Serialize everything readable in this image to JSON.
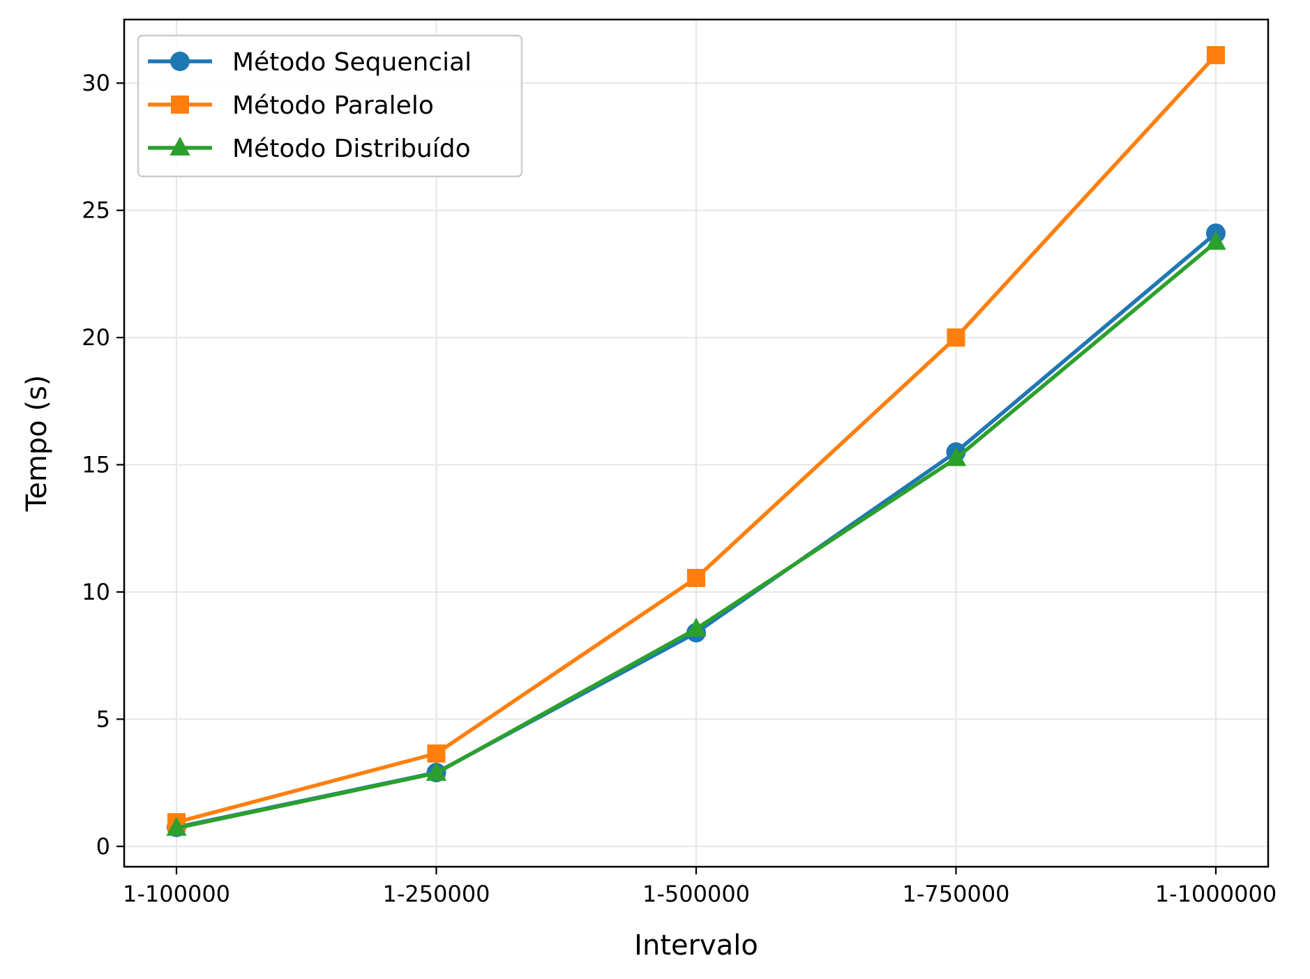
{
  "chart_data": {
    "type": "line",
    "categories": [
      "1-100000",
      "1-250000",
      "1-500000",
      "1-750000",
      "1-1000000"
    ],
    "xlabel": "Intervalo",
    "ylabel": "Tempo (s)",
    "ylim": [
      -0.8,
      32.5
    ],
    "yticks": [
      0,
      5,
      10,
      15,
      20,
      25,
      30
    ],
    "grid": true,
    "legend_position": "upper-left",
    "series": [
      {
        "name": "Método Sequencial",
        "values": [
          0.75,
          2.9,
          8.4,
          15.5,
          24.1
        ],
        "color": "#1f77b4",
        "marker": "circle"
      },
      {
        "name": "Método Paralelo",
        "values": [
          0.95,
          3.65,
          10.55,
          20.0,
          31.1
        ],
        "color": "#ff7f0e",
        "marker": "square"
      },
      {
        "name": "Método Distribuído",
        "values": [
          0.72,
          2.88,
          8.55,
          15.25,
          23.75
        ],
        "color": "#2ca02c",
        "marker": "triangle"
      }
    ]
  }
}
